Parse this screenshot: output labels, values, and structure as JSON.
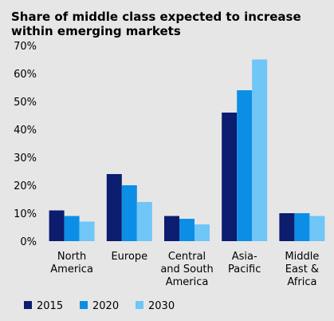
{
  "chart_data": {
    "type": "bar",
    "title": "Share of middle class expected to increase within emerging markets",
    "categories": [
      [
        "North",
        "America"
      ],
      [
        "Europe"
      ],
      [
        "Central",
        "and South",
        "America"
      ],
      [
        "Asia-",
        "Pacific"
      ],
      [
        "Middle",
        "East &",
        "Africa"
      ]
    ],
    "series": [
      {
        "name": "2015",
        "color": "#0c1c6e",
        "values": [
          11,
          24,
          9,
          46,
          10
        ]
      },
      {
        "name": "2020",
        "color": "#0d8ee6",
        "values": [
          9,
          20,
          8,
          54,
          10
        ]
      },
      {
        "name": "2030",
        "color": "#6fc6f7",
        "values": [
          7,
          14,
          6,
          65,
          9
        ]
      }
    ],
    "y_ticks": [
      "0%",
      "10%",
      "20%",
      "30%",
      "40%",
      "50%",
      "60%",
      "70%"
    ],
    "ylim": [
      0,
      70
    ],
    "xlabel": "",
    "ylabel": "",
    "grid": false,
    "legend_position": "bottom"
  }
}
